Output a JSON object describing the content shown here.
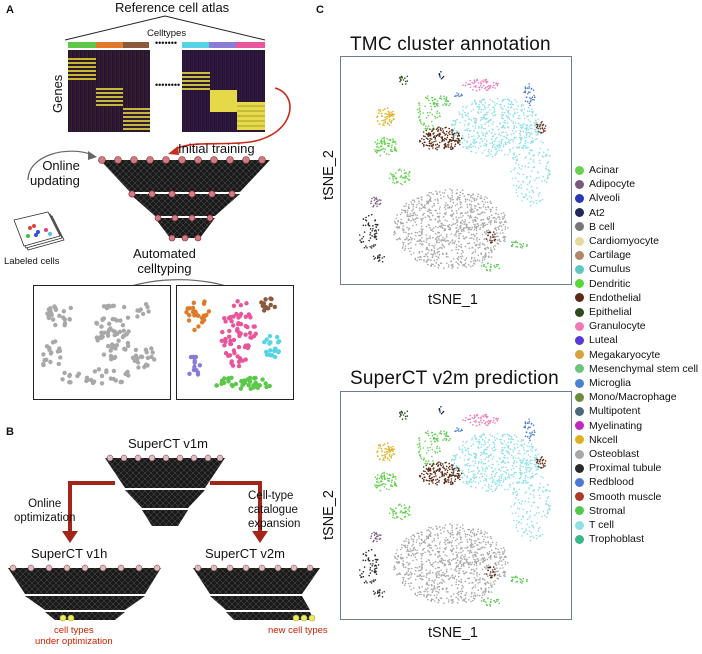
{
  "panels": {
    "a": "A",
    "b": "B",
    "c": "C"
  },
  "panel_a": {
    "atlas_title": "Reference cell atlas",
    "celltypes_label": "Celltypes",
    "genes_label": "Genes",
    "dots_1": "•••••••",
    "dots_2": "••••••••",
    "initial_training": "Initial training",
    "online_updating": "Online\nupdating",
    "labeled_cells": "Labeled cells",
    "automated_celltyping": "Automated\ncelltyping",
    "celltype_colors": [
      "#5cc84a",
      "#e07a28",
      "#8b5a3c",
      "#56d4e6",
      "#8a7bd6",
      "#e8559a"
    ]
  },
  "panel_b": {
    "v1m": "SuperCT v1m",
    "v1h": "SuperCT v1h",
    "v2m": "SuperCT v2m",
    "online_optimization": "Online\noptimization",
    "catalogue_expansion": "Cell-type\ncatalogue\nexpansion",
    "cell_types_under_optimization": "cell types\nunder optimization",
    "new_cell_types": "new cell types"
  },
  "panel_c": {
    "top_title": "TMC cluster annotation",
    "bottom_title": "SuperCT v2m prediction",
    "xlabel": "tSNE_1",
    "ylabel": "tSNE_2",
    "legend": [
      {
        "label": "Acinar",
        "color": "#63d24e"
      },
      {
        "label": "Adipocyte",
        "color": "#7a5a80"
      },
      {
        "label": "Alveoli",
        "color": "#2a36b8"
      },
      {
        "label": "At2",
        "color": "#1f2a5a"
      },
      {
        "label": "B cell",
        "color": "#777777"
      },
      {
        "label": "Cardiomyocyte",
        "color": "#e6d9a0"
      },
      {
        "label": "Cartilage",
        "color": "#b0876a"
      },
      {
        "label": "Cumulus",
        "color": "#5cc8c0"
      },
      {
        "label": "Dendritic",
        "color": "#58d63a"
      },
      {
        "label": "Endothelial",
        "color": "#5c2a14"
      },
      {
        "label": "Epithelial",
        "color": "#2e4a1e"
      },
      {
        "label": "Granulocyte",
        "color": "#f07ab8"
      },
      {
        "label": "Luteal",
        "color": "#5a3ad6"
      },
      {
        "label": "Megakaryocyte",
        "color": "#d8a23a"
      },
      {
        "label": "Mesenchymal stem cell",
        "color": "#6ec47a"
      },
      {
        "label": "Microglia",
        "color": "#4a82d2"
      },
      {
        "label": "Mono/Macrophage",
        "color": "#6e8a3c"
      },
      {
        "label": "Multipotent",
        "color": "#4a6a7a"
      },
      {
        "label": "Myelinating",
        "color": "#c02ac0"
      },
      {
        "label": "Nkcell",
        "color": "#e0b020"
      },
      {
        "label": "Osteoblast",
        "color": "#a8a8a8"
      },
      {
        "label": "Proximal tubule",
        "color": "#2a2a2a"
      },
      {
        "label": "Redblood",
        "color": "#4a7ad6"
      },
      {
        "label": "Smooth muscle",
        "color": "#b03a2a"
      },
      {
        "label": "Stromal",
        "color": "#52c84e"
      },
      {
        "label": "T cell",
        "color": "#8ee0e6"
      },
      {
        "label": "Trophoblast",
        "color": "#3ab88a"
      }
    ]
  }
}
